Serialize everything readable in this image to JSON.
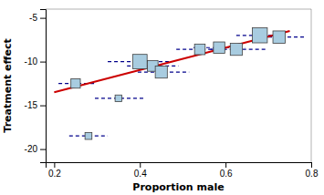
{
  "chart_data": {
    "type": "scatter",
    "xlabel": "Proportion male",
    "ylabel": "Treatment effect",
    "xlim": [
      0.18,
      0.8
    ],
    "ylim": [
      -21.5,
      -4.0
    ],
    "xticks": [
      0.2,
      0.4,
      0.6,
      0.8
    ],
    "yticks": [
      -5,
      -10,
      -15,
      -20
    ],
    "grid": false,
    "series": [
      {
        "type": "errorbar",
        "color": "#00008b",
        "line_style": "dashed",
        "values": [
          -12.5,
          -18.5,
          -14.2,
          -10.0,
          -10.5,
          -11.2,
          -8.6,
          -8.4,
          -8.6,
          -7.0,
          -7.2
        ],
        "x_low": [
          0.21,
          0.235,
          0.295,
          0.325,
          0.37,
          0.395,
          0.485,
          0.525,
          0.565,
          0.625,
          0.685
        ],
        "x_high": [
          0.295,
          0.325,
          0.41,
          0.475,
          0.49,
          0.515,
          0.595,
          0.645,
          0.695,
          0.74,
          0.785
        ]
      },
      {
        "type": "scatter",
        "color": "#a8cce0",
        "marker": "square",
        "x": [
          0.25,
          0.28,
          0.35,
          0.4,
          0.43,
          0.45,
          0.54,
          0.585,
          0.625,
          0.68,
          0.725
        ],
        "values": [
          -12.5,
          -18.5,
          -14.2,
          -10.0,
          -10.5,
          -11.2,
          -8.6,
          -8.4,
          -8.6,
          -7.0,
          -7.2
        ],
        "size": [
          55,
          30,
          28,
          130,
          70,
          90,
          70,
          80,
          90,
          140,
          95
        ]
      },
      {
        "type": "line",
        "color": "#cc0000",
        "line_style": "solid",
        "x": [
          0.2,
          0.75
        ],
        "values": [
          -13.5,
          -6.5
        ]
      }
    ]
  }
}
